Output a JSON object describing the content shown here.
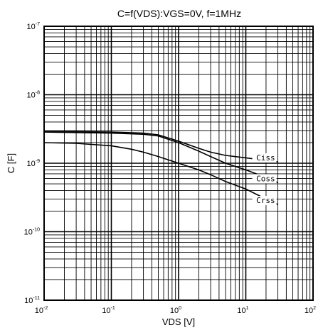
{
  "chart_data": {
    "type": "line",
    "title": "C=f(VDS):VGS=0V, f=1MHz",
    "xlabel": "VDS [V]",
    "ylabel": "C [F]",
    "xscale": "log",
    "yscale": "log",
    "xlim": [
      0.01,
      100
    ],
    "ylim": [
      1e-11,
      1e-07
    ],
    "grid": true,
    "x_tick_labels": [
      {
        "base": "10",
        "exp": "-2"
      },
      {
        "base": "10",
        "exp": "-1"
      },
      {
        "base": "10",
        "exp": "0"
      },
      {
        "base": "10",
        "exp": "1"
      },
      {
        "base": "10",
        "exp": "2"
      }
    ],
    "y_tick_labels": [
      {
        "base": "10",
        "exp": "-11"
      },
      {
        "base": "10",
        "exp": "-10"
      },
      {
        "base": "10",
        "exp": "-9"
      },
      {
        "base": "10",
        "exp": "-8"
      },
      {
        "base": "10",
        "exp": "-7"
      }
    ],
    "series": [
      {
        "name": "Ciss",
        "x": [
          0.01,
          0.03,
          0.1,
          0.3,
          0.5,
          1,
          2,
          3,
          5,
          10,
          20,
          30
        ],
        "y": [
          2.9e-09,
          2.9e-09,
          2.85e-09,
          2.75e-09,
          2.6e-09,
          2.1e-09,
          1.65e-09,
          1.45e-09,
          1.3e-09,
          1.2e-09,
          1.1e-09,
          1.05e-09
        ]
      },
      {
        "name": "Coss",
        "x": [
          0.01,
          0.03,
          0.1,
          0.3,
          0.5,
          1,
          2,
          3,
          5,
          10,
          20,
          30
        ],
        "y": [
          2.85e-09,
          2.8e-09,
          2.75e-09,
          2.65e-09,
          2.5e-09,
          2e-09,
          1.5e-09,
          1.25e-09,
          1e-09,
          8e-10,
          6.2e-10,
          5.2e-10
        ]
      },
      {
        "name": "Crss",
        "x": [
          0.01,
          0.03,
          0.1,
          0.2,
          0.3,
          0.5,
          1,
          2,
          3,
          5,
          10,
          20,
          30
        ],
        "y": [
          2e-09,
          1.95e-09,
          1.8e-09,
          1.6e-09,
          1.45e-09,
          1.25e-09,
          1e-09,
          8e-10,
          6.8e-10,
          5.4e-10,
          4.2e-10,
          3e-10,
          2.5e-10
        ]
      }
    ]
  }
}
